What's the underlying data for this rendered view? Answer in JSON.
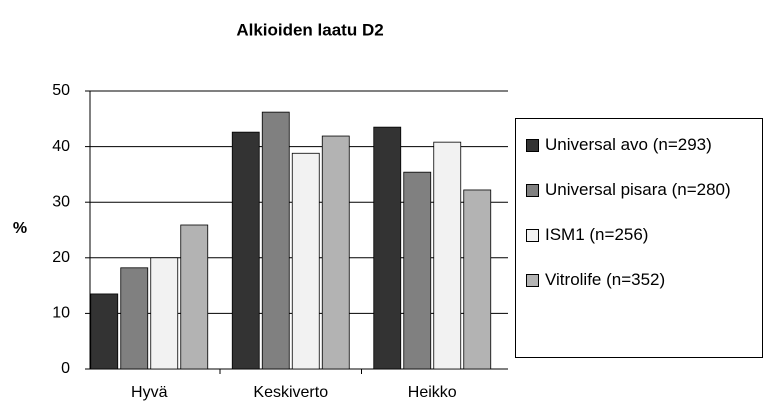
{
  "chart_data": {
    "type": "bar",
    "title": "Alkioiden laatu D2",
    "ylabel": "%",
    "categories": [
      "Hyvä",
      "Keskiverto",
      "Heikko"
    ],
    "series": [
      {
        "name": "Universal avo (n=293)",
        "color": "#333333",
        "values": [
          13.5,
          42.6,
          43.5
        ]
      },
      {
        "name": "Universal pisara (n=280)",
        "color": "#808080",
        "values": [
          18.2,
          46.2,
          35.4
        ]
      },
      {
        "name": "ISM1 (n=256)",
        "color": "#f2f2f2",
        "values": [
          20,
          38.8,
          40.8
        ]
      },
      {
        "name": "Vitrolife (n=352)",
        "color": "#b3b3b3",
        "values": [
          25.9,
          41.9,
          32.2
        ]
      }
    ],
    "ylim": [
      0,
      50
    ],
    "yticks": [
      0,
      10,
      20,
      30,
      40,
      50
    ],
    "grid": true,
    "legend": "right"
  }
}
